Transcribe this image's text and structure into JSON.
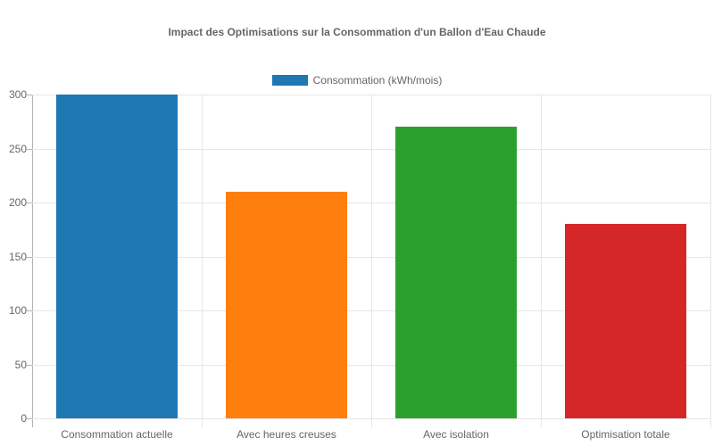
{
  "title": "Impact des Optimisations sur la Consommation d'un Ballon d'Eau Chaude",
  "legend": {
    "label": "Consommation (kWh/mois)",
    "color": "#1f77b4"
  },
  "yaxis": {
    "ticks": [
      "300",
      "250",
      "200",
      "150",
      "100",
      "50",
      "0"
    ]
  },
  "xaxis": {
    "labels": [
      "Consommation actuelle",
      "Avec heures creuses",
      "Avec isolation",
      "Optimisation totale"
    ]
  },
  "chart_data": {
    "type": "bar",
    "title": "Impact des Optimisations sur la Consommation d'un Ballon d'Eau Chaude",
    "xlabel": "",
    "ylabel": "",
    "categories": [
      "Consommation actuelle",
      "Avec heures creuses",
      "Avec isolation",
      "Optimisation totale"
    ],
    "series": [
      {
        "name": "Consommation (kWh/mois)",
        "values": [
          300,
          210,
          270,
          180
        ]
      }
    ],
    "colors": [
      "#1f77b4",
      "#ff7f0e",
      "#2ca02c",
      "#d62728"
    ],
    "ylim": [
      0,
      300
    ],
    "yticks": [
      0,
      50,
      100,
      150,
      200,
      250,
      300
    ],
    "grid": true,
    "legend_position": "top"
  }
}
